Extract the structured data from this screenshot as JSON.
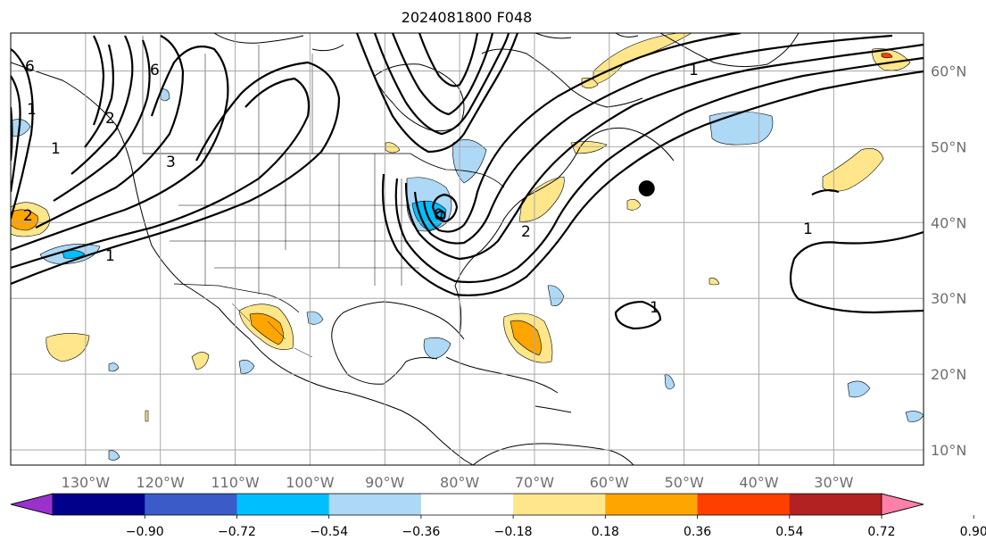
{
  "title": "2024081800 F048",
  "map": {
    "lon_range": [
      -140,
      -18
    ],
    "lat_range": [
      8,
      65
    ],
    "lon_ticks": [
      {
        "lon": -130,
        "label": "130°W"
      },
      {
        "lon": -120,
        "label": "120°W"
      },
      {
        "lon": -110,
        "label": "110°W"
      },
      {
        "lon": -100,
        "label": "100°W"
      },
      {
        "lon": -90,
        "label": "90°W"
      },
      {
        "lon": -80,
        "label": "80°W"
      },
      {
        "lon": -70,
        "label": "70°W"
      },
      {
        "lon": -60,
        "label": "60°W"
      },
      {
        "lon": -50,
        "label": "50°W"
      },
      {
        "lon": -40,
        "label": "40°W"
      },
      {
        "lon": -30,
        "label": "30°W"
      }
    ],
    "lat_ticks": [
      {
        "lat": 10,
        "label": "10°N"
      },
      {
        "lat": 20,
        "label": "20°N"
      },
      {
        "lat": 30,
        "label": "30°N"
      },
      {
        "lat": 40,
        "label": "40°N"
      },
      {
        "lat": 50,
        "label": "50°N"
      },
      {
        "lat": 60,
        "label": "60°N"
      }
    ],
    "gridlines": true,
    "marker": {
      "lon": -55,
      "lat": 44.5,
      "color": "#000000"
    },
    "contour_labels": [
      "6",
      "1",
      "1",
      "3",
      "2",
      "2",
      "1",
      "6",
      "0",
      "2",
      "1",
      "1",
      "1"
    ]
  },
  "colorbar": {
    "colors": [
      "#9932cc",
      "#00008b",
      "#3a5bc8",
      "#00bfff",
      "#add8f6",
      "#ffffff",
      "#ffe68a",
      "#ffa500",
      "#ff3f00",
      "#b22222",
      "#ff80a8"
    ],
    "tick_labels": [
      "−0.90",
      "−0.72",
      "−0.54",
      "−0.36",
      "−0.18",
      "0.18",
      "0.36",
      "0.54",
      "0.72",
      "0.90"
    ]
  }
}
